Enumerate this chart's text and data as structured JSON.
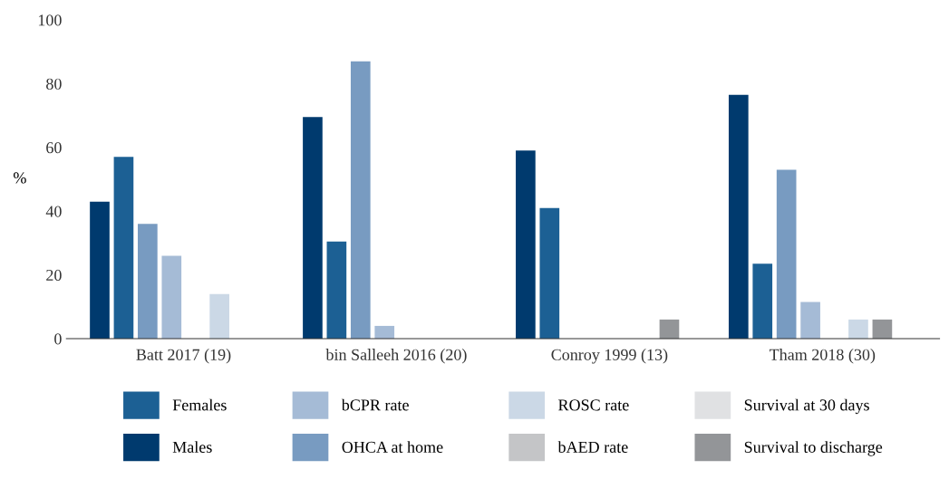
{
  "chart_data": {
    "type": "bar",
    "ylabel": "%",
    "categories": [
      "Batt 2017 (19)",
      "bin Salleeh 2016 (20)",
      "Conroy 1999 (13)",
      "Tham 2018 (30)"
    ],
    "series": [
      {
        "name": "Males",
        "color": "#003a6e",
        "values": [
          43,
          69.5,
          59,
          76.5
        ]
      },
      {
        "name": "Females",
        "color": "#1c6094",
        "values": [
          57,
          30.5,
          41,
          23.5
        ]
      },
      {
        "name": "OHCA at home",
        "color": "#789bc1",
        "values": [
          36,
          87,
          null,
          53
        ]
      },
      {
        "name": "bCPR rate",
        "color": "#a5bbd6",
        "values": [
          26,
          4,
          null,
          11.5
        ]
      },
      {
        "name": "bAED rate",
        "color": "#c4c5c7",
        "values": [
          null,
          null,
          null,
          null
        ]
      },
      {
        "name": "ROSC rate",
        "color": "#cbd8e6",
        "values": [
          14,
          null,
          null,
          6
        ]
      },
      {
        "name": "Survival to discharge",
        "color": "#939598",
        "values": [
          null,
          null,
          6,
          6
        ]
      },
      {
        "name": "Survival at 30 days",
        "color": "#e0e1e3",
        "values": [
          null,
          null,
          null,
          null
        ]
      }
    ],
    "ylim": [
      0,
      100
    ],
    "yticks": [
      0,
      20,
      40,
      60,
      80,
      100
    ],
    "grid": false,
    "legend": "bottom"
  }
}
